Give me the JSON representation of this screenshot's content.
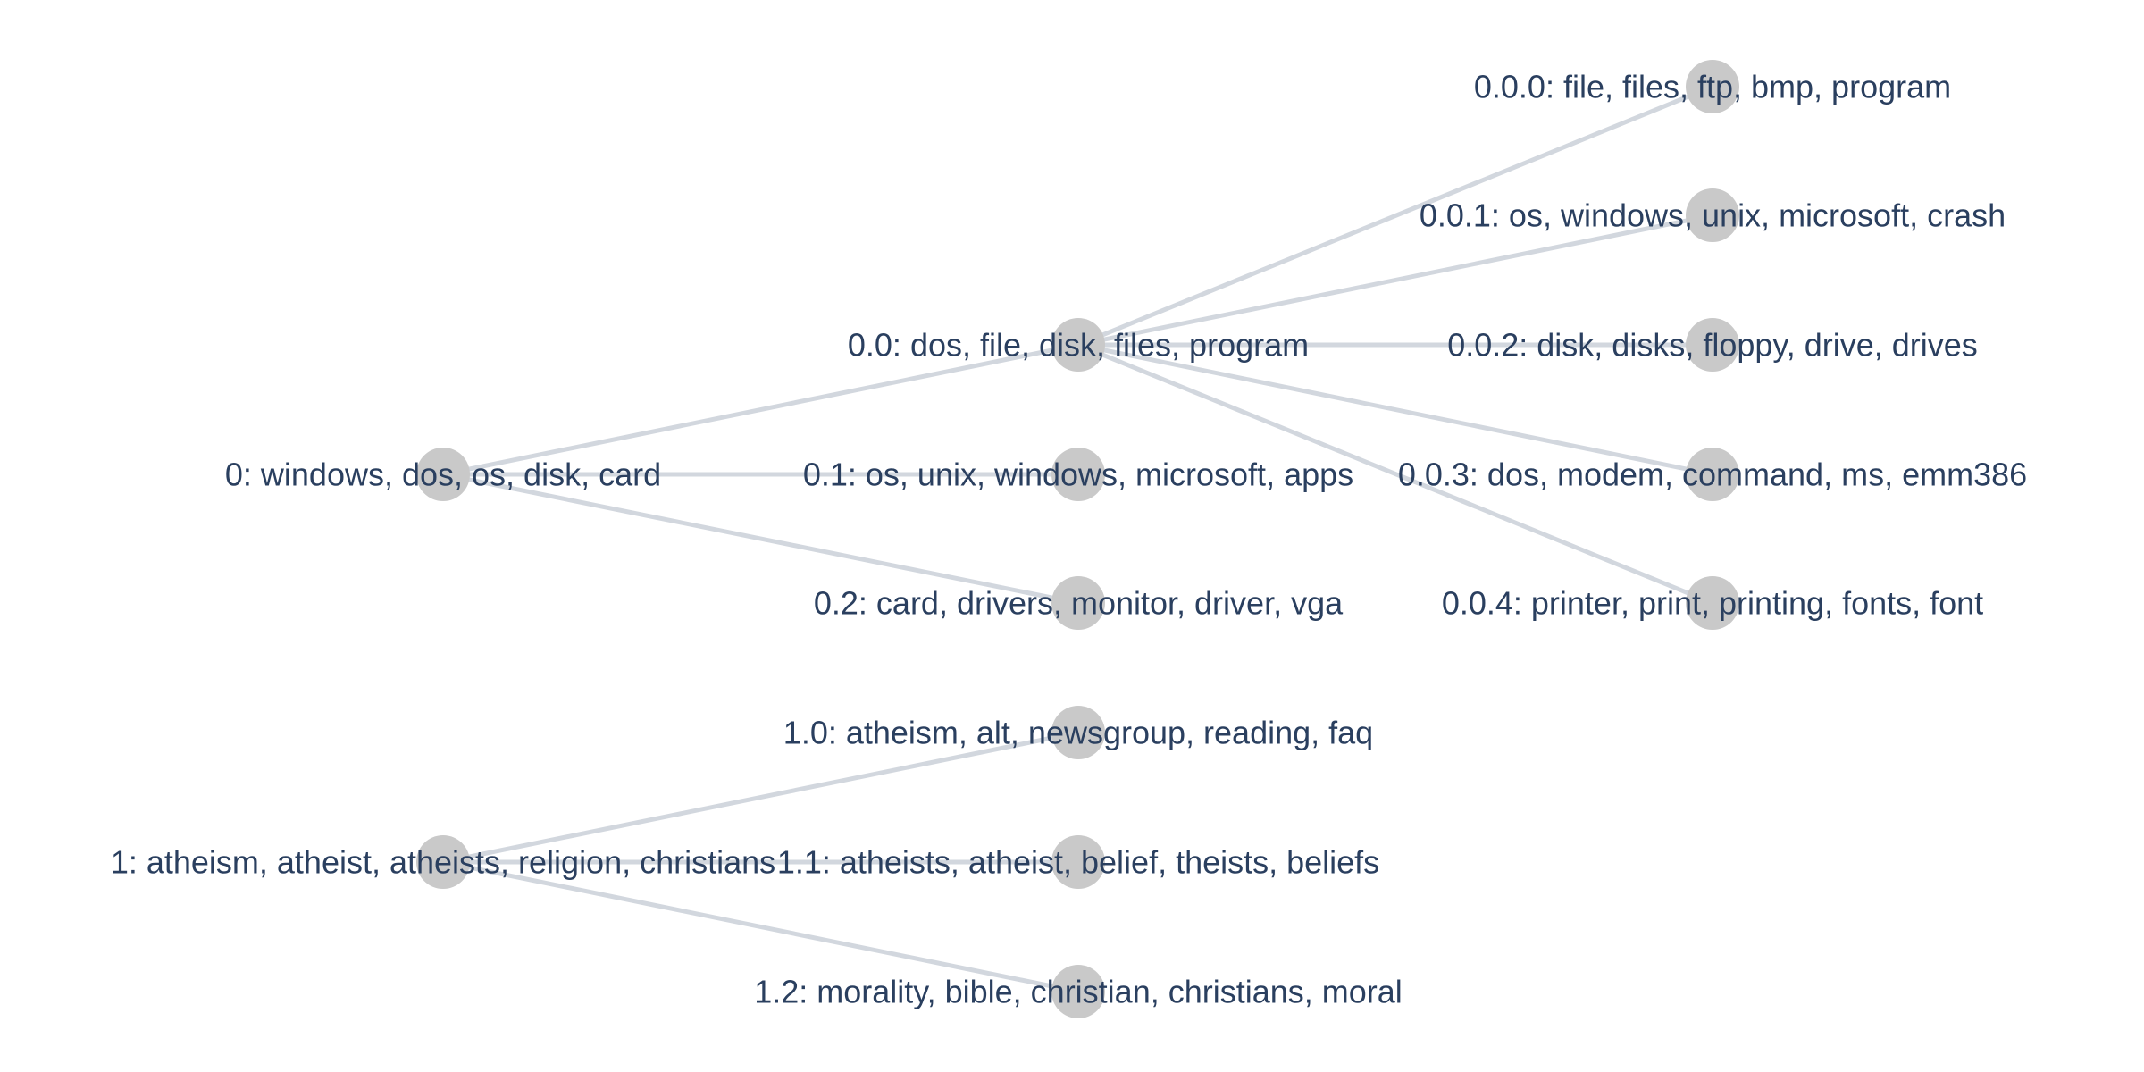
{
  "colors": {
    "node": "#c9c9c9",
    "edge": "#d2d7de",
    "label": "#2a3f5f",
    "background": "#ffffff"
  },
  "nodes": [
    {
      "id": "0",
      "label": "0: windows, dos, os, disk, card"
    },
    {
      "id": "0.0",
      "label": "0.0: dos, file, disk, files, program"
    },
    {
      "id": "0.1",
      "label": "0.1: os, unix, windows, microsoft, apps"
    },
    {
      "id": "0.2",
      "label": "0.2: card, drivers, monitor, driver, vga"
    },
    {
      "id": "0.0.0",
      "label": "0.0.0: file, files, ftp, bmp, program"
    },
    {
      "id": "0.0.1",
      "label": "0.0.1: os, windows, unix, microsoft, crash"
    },
    {
      "id": "0.0.2",
      "label": "0.0.2: disk, disks, floppy, drive, drives"
    },
    {
      "id": "0.0.3",
      "label": "0.0.3: dos, modem, command, ms, emm386"
    },
    {
      "id": "0.0.4",
      "label": "0.0.4: printer, print, printing, fonts, font"
    },
    {
      "id": "1",
      "label": "1: atheism, atheist, atheists, religion, christians"
    },
    {
      "id": "1.0",
      "label": "1.0: atheism, alt, newsgroup, reading, faq"
    },
    {
      "id": "1.1",
      "label": "1.1: atheists, atheist, belief, theists, beliefs"
    },
    {
      "id": "1.2",
      "label": "1.2: morality, bible, christian, christians, moral"
    }
  ],
  "edges": [
    {
      "from": "0",
      "to": "0.0"
    },
    {
      "from": "0",
      "to": "0.1"
    },
    {
      "from": "0",
      "to": "0.2"
    },
    {
      "from": "0.0",
      "to": "0.0.0"
    },
    {
      "from": "0.0",
      "to": "0.0.1"
    },
    {
      "from": "0.0",
      "to": "0.0.2"
    },
    {
      "from": "0.0",
      "to": "0.0.3"
    },
    {
      "from": "0.0",
      "to": "0.0.4"
    },
    {
      "from": "1",
      "to": "1.0"
    },
    {
      "from": "1",
      "to": "1.1"
    },
    {
      "from": "1",
      "to": "1.2"
    }
  ]
}
